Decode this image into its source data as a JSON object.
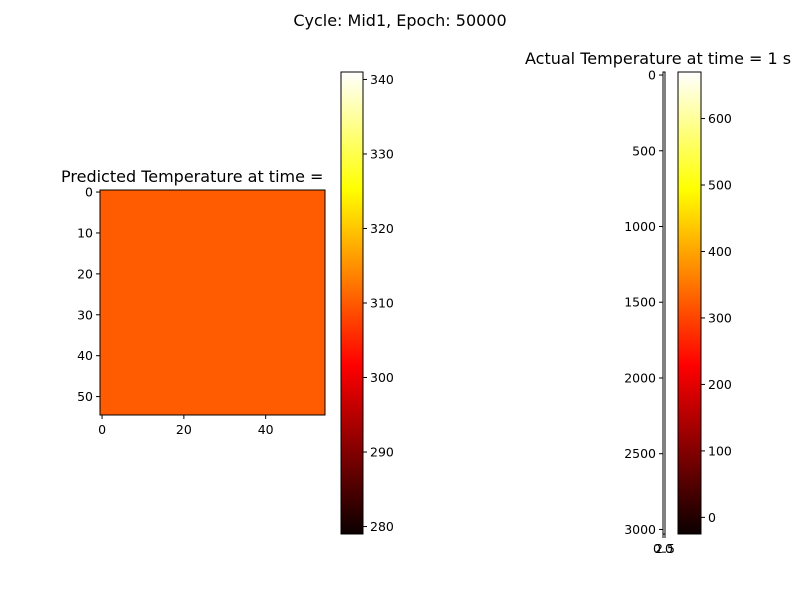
{
  "figure_title": "Cycle: Mid1, Epoch: 50000",
  "chart_data": [
    {
      "type": "heatmap",
      "title": "Predicted Temperature at time =",
      "colormap": "hot",
      "grid": false,
      "xlim": [
        -0.5,
        54.5
      ],
      "ylim": [
        54.5,
        -0.5
      ],
      "xticks": [
        "0",
        "20",
        "40"
      ],
      "xtick_values": [
        0,
        20,
        40
      ],
      "yticks": [
        "0",
        "10",
        "20",
        "30",
        "40",
        "50"
      ],
      "ytick_values": [
        0,
        10,
        20,
        30,
        40,
        50
      ],
      "value": 313,
      "fill_color": "#ff5b00",
      "colorbar": {
        "range": [
          279,
          341
        ],
        "ticks": [
          "280",
          "290",
          "300",
          "310",
          "320",
          "330",
          "340"
        ],
        "tick_values": [
          280,
          290,
          300,
          310,
          320,
          330,
          340
        ]
      }
    },
    {
      "type": "heatmap",
      "title": "Actual Temperature at time = 1 s",
      "colormap": "hot",
      "grid": false,
      "xlim": [
        0,
        2.5
      ],
      "ylim": [
        3030,
        -20
      ],
      "xticks": [
        "0.0",
        "2.5"
      ],
      "xtick_values": [
        0,
        2.5
      ],
      "yticks": [
        "0",
        "500",
        "1000",
        "1500",
        "2000",
        "2500",
        "3000"
      ],
      "ytick_values": [
        0,
        500,
        1000,
        1500,
        2000,
        2500,
        3000
      ],
      "colorbar": {
        "range": [
          -25,
          670
        ],
        "ticks": [
          "0",
          "100",
          "200",
          "300",
          "400",
          "500",
          "600"
        ],
        "tick_values": [
          0,
          100,
          200,
          300,
          400,
          500,
          600
        ]
      }
    }
  ]
}
